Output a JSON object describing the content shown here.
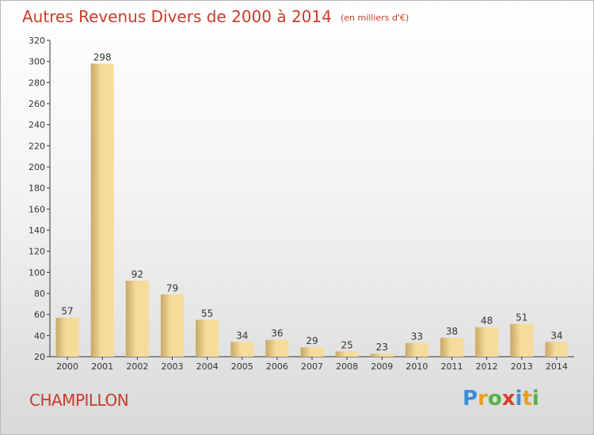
{
  "title": "Autres Revenus Divers de 2000 à 2014",
  "subtitle": "(en milliers d'€)",
  "commune": "CHAMPILLON",
  "logo": {
    "text": "Proxiti",
    "letters": [
      {
        "char": "P",
        "color": "#3a8fd6"
      },
      {
        "char": "r",
        "color": "#e8a020"
      },
      {
        "char": "o",
        "color": "#58b048"
      },
      {
        "char": "x",
        "color": "#d8402a"
      },
      {
        "char": "i",
        "color": "#3a8fd6"
      },
      {
        "char": "t",
        "color": "#e8a020"
      },
      {
        "char": "i",
        "color": "#58b048"
      }
    ]
  },
  "colors": {
    "title": "#c83c2a",
    "bar_light": "#f6dc9a",
    "bar_dark": "#c8a866",
    "axis": "#333333",
    "grid_tick": "#333333"
  },
  "chart_data": {
    "type": "bar",
    "title": "Autres Revenus Divers de 2000 à 2014",
    "subtitle": "(en milliers d'€)",
    "categories": [
      "2000",
      "2001",
      "2002",
      "2003",
      "2004",
      "2005",
      "2006",
      "2007",
      "2008",
      "2009",
      "2010",
      "2011",
      "2012",
      "2013",
      "2014"
    ],
    "values": [
      57,
      298,
      92,
      79,
      55,
      34,
      36,
      29,
      25,
      23,
      33,
      38,
      48,
      51,
      34
    ],
    "ylim": [
      20,
      320
    ],
    "yticks": [
      20,
      40,
      60,
      80,
      100,
      120,
      140,
      160,
      180,
      200,
      220,
      240,
      260,
      280,
      300,
      320
    ],
    "xlabel": "",
    "ylabel": "",
    "grid": false,
    "legend": "none"
  }
}
